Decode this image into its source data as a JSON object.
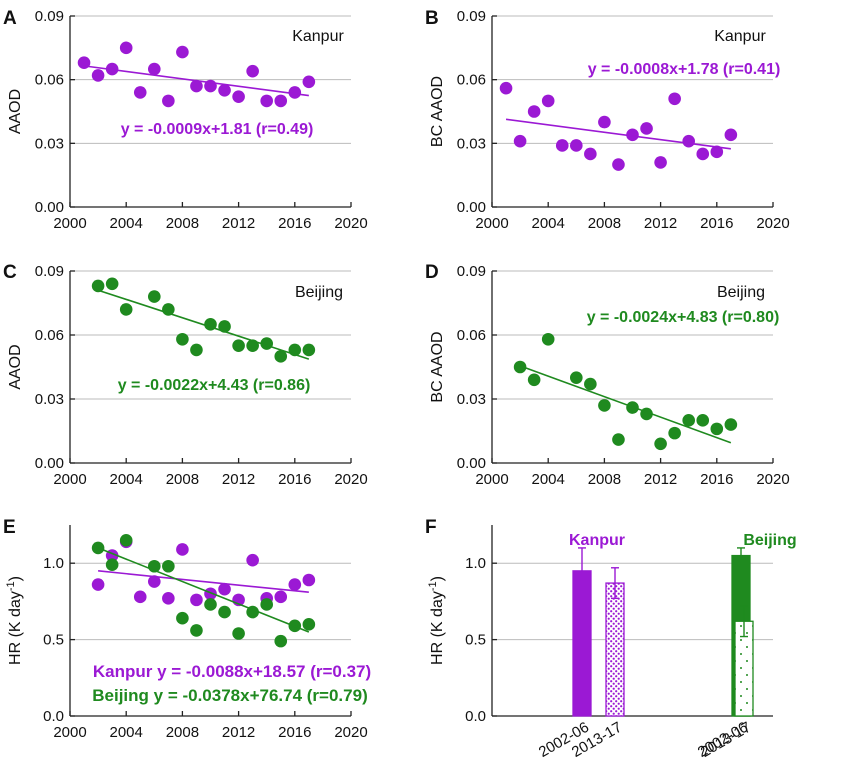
{
  "colors": {
    "kanpur": "#9b19d4",
    "beijing": "#1f8a1f",
    "axis": "#222222",
    "grid": "#bbbbbb"
  },
  "chart_data": [
    {
      "id": "A",
      "type": "scatter",
      "panel_label": "A",
      "city": "Kanpur",
      "xlabel": "",
      "ylabel": "AAOD",
      "xlim": [
        2000,
        2020
      ],
      "ylim": [
        0,
        0.09
      ],
      "xticks": [
        2000,
        2004,
        2008,
        2012,
        2016,
        2020
      ],
      "xtick_labels": [
        "2000",
        "2004",
        "2008",
        "2012",
        "2016",
        "2020"
      ],
      "yticks": [
        0,
        0.03,
        0.06,
        0.09
      ],
      "ytick_labels": [
        "0.00",
        "0.03",
        "0.06",
        "0.09"
      ],
      "grid": "horizontal",
      "series": [
        {
          "name": "Kanpur",
          "color": "#9b19d4",
          "x": [
            2001,
            2002,
            2003,
            2004,
            2005,
            2006,
            2007,
            2008,
            2009,
            2010,
            2011,
            2012,
            2013,
            2014,
            2015,
            2016,
            2017
          ],
          "y": [
            0.068,
            0.062,
            0.065,
            0.075,
            0.054,
            0.065,
            0.05,
            0.073,
            0.057,
            0.057,
            0.055,
            0.052,
            0.064,
            0.05,
            0.05,
            0.054,
            0.059
          ],
          "fit": {
            "x0": 2001,
            "y0": 0.0665,
            "x1": 2017,
            "y1": 0.0525,
            "label": "y = -0.0009x+1.81 (r=0.49)"
          }
        }
      ]
    },
    {
      "id": "B",
      "type": "scatter",
      "panel_label": "B",
      "city": "Kanpur",
      "xlabel": "",
      "ylabel": "BC AAOD",
      "xlim": [
        2000,
        2020
      ],
      "ylim": [
        0,
        0.09
      ],
      "xticks": [
        2000,
        2004,
        2008,
        2012,
        2016,
        2020
      ],
      "xtick_labels": [
        "2000",
        "2004",
        "2008",
        "2012",
        "2016",
        "2020"
      ],
      "yticks": [
        0,
        0.03,
        0.06,
        0.09
      ],
      "ytick_labels": [
        "0.00",
        "0.03",
        "0.06",
        "0.09"
      ],
      "grid": "horizontal",
      "series": [
        {
          "name": "Kanpur",
          "color": "#9b19d4",
          "x": [
            2001,
            2002,
            2003,
            2004,
            2005,
            2006,
            2007,
            2008,
            2009,
            2010,
            2011,
            2012,
            2013,
            2014,
            2015,
            2016,
            2017
          ],
          "y": [
            0.056,
            0.031,
            0.045,
            0.05,
            0.029,
            0.029,
            0.025,
            0.04,
            0.02,
            0.034,
            0.037,
            0.021,
            0.051,
            0.031,
            0.025,
            0.026,
            0.034
          ],
          "fit": {
            "x0": 2001,
            "y0": 0.0413,
            "x1": 2017,
            "y1": 0.0274,
            "label": "y = -0.0008x+1.78 (r=0.41)"
          }
        }
      ]
    },
    {
      "id": "C",
      "type": "scatter",
      "panel_label": "C",
      "city": "Beijing",
      "xlabel": "",
      "ylabel": "AAOD",
      "xlim": [
        2000,
        2020
      ],
      "ylim": [
        0,
        0.09
      ],
      "xticks": [
        2000,
        2004,
        2008,
        2012,
        2016,
        2020
      ],
      "xtick_labels": [
        "2000",
        "2004",
        "2008",
        "2012",
        "2016",
        "2020"
      ],
      "yticks": [
        0,
        0.03,
        0.06,
        0.09
      ],
      "ytick_labels": [
        "0.00",
        "0.03",
        "0.06",
        "0.09"
      ],
      "grid": "horizontal",
      "series": [
        {
          "name": "Beijing",
          "color": "#1f8a1f",
          "x": [
            2002,
            2003,
            2004,
            2006,
            2007,
            2008,
            2009,
            2010,
            2011,
            2012,
            2013,
            2014,
            2015,
            2016,
            2017
          ],
          "y": [
            0.083,
            0.084,
            0.072,
            0.078,
            0.072,
            0.058,
            0.053,
            0.065,
            0.064,
            0.055,
            0.055,
            0.056,
            0.05,
            0.053,
            0.053
          ],
          "fit": {
            "x0": 2002,
            "y0": 0.081,
            "x1": 2017,
            "y1": 0.0487,
            "label": "y = -0.0022x+4.43 (r=0.86)"
          }
        }
      ]
    },
    {
      "id": "D",
      "type": "scatter",
      "panel_label": "D",
      "city": "Beijing",
      "xlabel": "",
      "ylabel": "BC AAOD",
      "xlim": [
        2000,
        2020
      ],
      "ylim": [
        0,
        0.09
      ],
      "xticks": [
        2000,
        2004,
        2008,
        2012,
        2016,
        2020
      ],
      "xtick_labels": [
        "2000",
        "2004",
        "2008",
        "2012",
        "2016",
        "2020"
      ],
      "yticks": [
        0,
        0.03,
        0.06,
        0.09
      ],
      "ytick_labels": [
        "0.00",
        "0.03",
        "0.06",
        "0.09"
      ],
      "grid": "horizontal",
      "series": [
        {
          "name": "Beijing",
          "color": "#1f8a1f",
          "x": [
            2002,
            2003,
            2004,
            2006,
            2007,
            2008,
            2009,
            2010,
            2011,
            2012,
            2013,
            2014,
            2015,
            2016,
            2017
          ],
          "y": [
            0.045,
            0.039,
            0.058,
            0.04,
            0.037,
            0.027,
            0.011,
            0.026,
            0.023,
            0.009,
            0.014,
            0.02,
            0.02,
            0.016,
            0.018
          ],
          "fit": {
            "x0": 2002,
            "y0": 0.0455,
            "x1": 2017,
            "y1": 0.0095,
            "label": "y = -0.0024x+4.83 (r=0.80)"
          }
        }
      ]
    },
    {
      "id": "E",
      "type": "scatter",
      "panel_label": "E",
      "xlabel": "",
      "ylabel": "HR (K day",
      "ylabel_superscript": "-1",
      "ylabel_suffix": ")",
      "xlim": [
        2000,
        2020
      ],
      "ylim": [
        0,
        1.25
      ],
      "xticks": [
        2000,
        2004,
        2008,
        2012,
        2016,
        2020
      ],
      "xtick_labels": [
        "2000",
        "2004",
        "2008",
        "2012",
        "2016",
        "2020"
      ],
      "yticks": [
        0,
        0.5,
        1.0
      ],
      "ytick_labels": [
        "0.0",
        "0.5",
        "1.0"
      ],
      "grid": "horizontal",
      "series": [
        {
          "name": "Kanpur",
          "color": "#9b19d4",
          "x": [
            2002,
            2003,
            2004,
            2005,
            2006,
            2007,
            2008,
            2009,
            2010,
            2011,
            2012,
            2013,
            2014,
            2015,
            2016,
            2017
          ],
          "y": [
            0.86,
            1.05,
            1.14,
            0.78,
            0.88,
            0.77,
            1.09,
            0.76,
            0.8,
            0.83,
            0.76,
            1.02,
            0.77,
            0.78,
            0.86,
            0.89
          ],
          "fit": {
            "x0": 2002,
            "y0": 0.95,
            "x1": 2017,
            "y1": 0.81,
            "label": "Kanpur y = -0.0088x+18.57 (r=0.37)"
          }
        },
        {
          "name": "Beijing",
          "color": "#1f8a1f",
          "x": [
            2002,
            2003,
            2004,
            2006,
            2007,
            2008,
            2009,
            2010,
            2011,
            2012,
            2013,
            2014,
            2015,
            2016,
            2017
          ],
          "y": [
            1.1,
            0.99,
            1.15,
            0.98,
            0.98,
            0.64,
            0.56,
            0.73,
            0.68,
            0.54,
            0.68,
            0.73,
            0.49,
            0.59,
            0.6
          ],
          "fit": {
            "x0": 2002,
            "y0": 1.1,
            "x1": 2017,
            "y1": 0.55,
            "label": "Beijing y = -0.0378x+76.74 (r=0.79)"
          }
        }
      ]
    },
    {
      "id": "F",
      "type": "bar",
      "panel_label": "F",
      "xlabel": "",
      "ylabel": "HR (K day",
      "ylabel_superscript": "-1",
      "ylabel_suffix": ")",
      "ylim": [
        0,
        1.25
      ],
      "yticks": [
        0,
        0.5,
        1.0
      ],
      "ytick_labels": [
        "0.0",
        "0.5",
        "1.0"
      ],
      "grid": "horizontal",
      "categories": [
        "2002-06",
        "2013-17",
        "2002-06",
        "2013-17"
      ],
      "groups": [
        {
          "name": "Kanpur",
          "color": "#9b19d4",
          "values": [
            0.95,
            0.87
          ],
          "errors": [
            0.15,
            0.1
          ],
          "fill": [
            "solid",
            "hatched"
          ]
        },
        {
          "name": "Beijing",
          "color": "#1f8a1f",
          "values": [
            1.05,
            0.62
          ],
          "errors": [
            0.05,
            0.1
          ],
          "fill": [
            "solid",
            "dotted"
          ]
        }
      ]
    }
  ]
}
